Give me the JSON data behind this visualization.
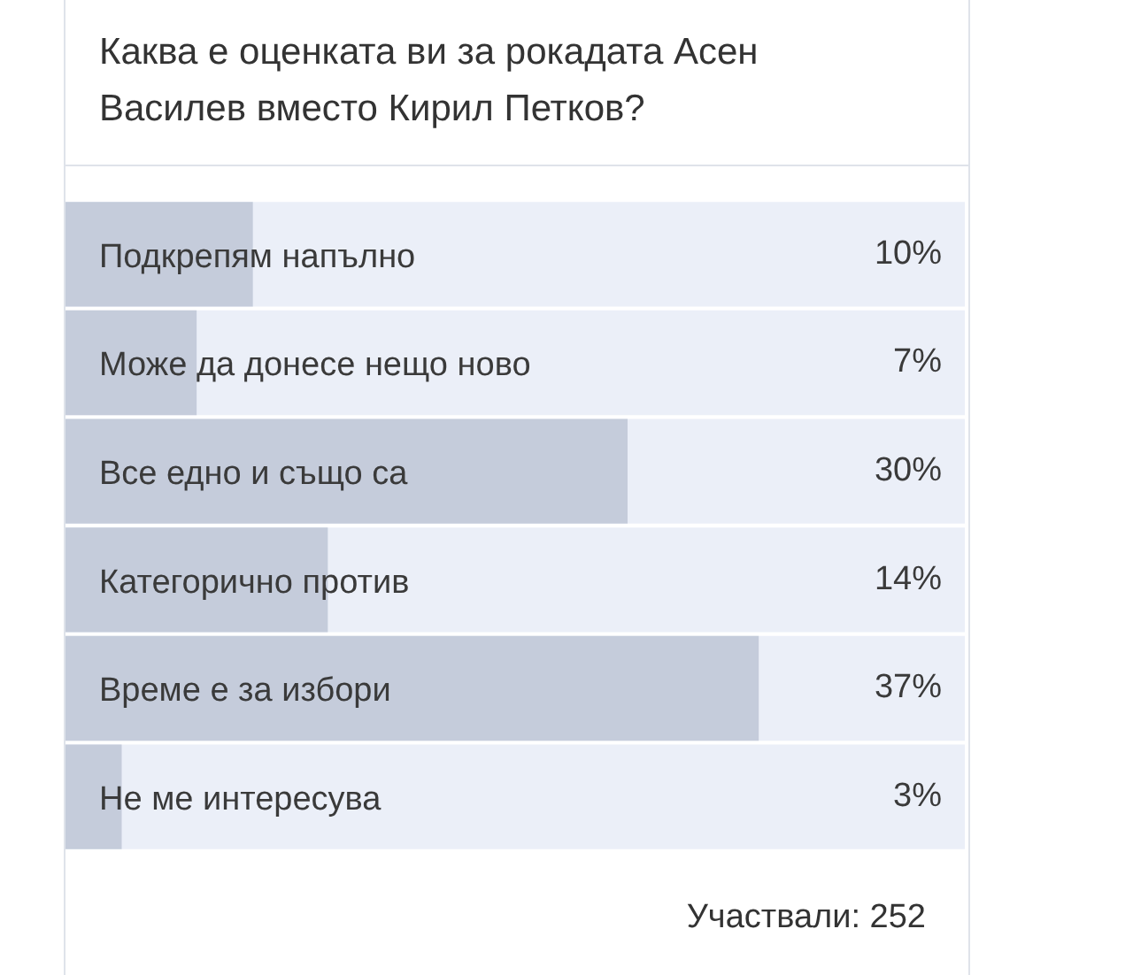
{
  "chart_data": {
    "type": "bar",
    "orientation": "horizontal",
    "title": "Каква е оценката ви за рокадата Асен Василев вместо Кирил Петков?",
    "categories": [
      "Подкрепям напълно",
      "Може да донесе нещо ново",
      "Все едно и също са",
      "Категорично против",
      "Време е за избори",
      "Не ме интересува"
    ],
    "values": [
      10,
      7,
      30,
      14,
      37,
      3
    ],
    "value_labels": [
      "10%",
      "7%",
      "30%",
      "14%",
      "37%",
      "3%"
    ],
    "color": "#c5ccdb",
    "xlim": [
      0,
      48
    ],
    "annotations": [
      "Участвали: 252"
    ]
  }
}
